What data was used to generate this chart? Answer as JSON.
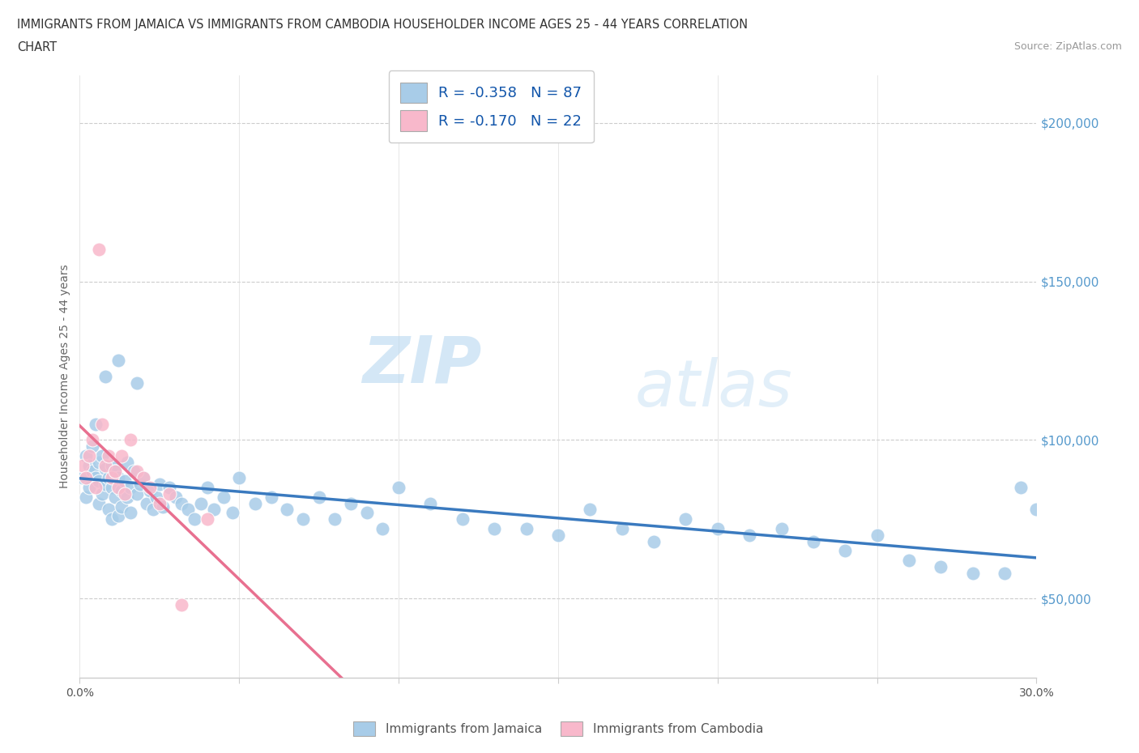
{
  "title_line1": "IMMIGRANTS FROM JAMAICA VS IMMIGRANTS FROM CAMBODIA HOUSEHOLDER INCOME AGES 25 - 44 YEARS CORRELATION",
  "title_line2": "CHART",
  "source_text": "Source: ZipAtlas.com",
  "ylabel": "Householder Income Ages 25 - 44 years",
  "xlim": [
    0.0,
    0.3
  ],
  "ylim": [
    25000,
    215000
  ],
  "x_ticks": [
    0.0,
    0.05,
    0.1,
    0.15,
    0.2,
    0.25,
    0.3
  ],
  "x_tick_labels": [
    "0.0%",
    "",
    "",
    "",
    "",
    "",
    "30.0%"
  ],
  "y_ticks": [
    50000,
    100000,
    150000,
    200000
  ],
  "y_tick_labels": [
    "$50,000",
    "$100,000",
    "$150,000",
    "$200,000"
  ],
  "jamaica_color": "#a8cce8",
  "cambodia_color": "#f8b8cb",
  "jamaica_line_color": "#3a7abf",
  "cambodia_line_color": "#e87090",
  "legend_jamaica_label": "R = -0.358   N = 87",
  "legend_cambodia_label": "R = -0.170   N = 22",
  "watermark_part1": "ZIP",
  "watermark_part2": "atlas",
  "jamaica_x": [
    0.001,
    0.002,
    0.002,
    0.003,
    0.003,
    0.004,
    0.004,
    0.005,
    0.005,
    0.006,
    0.006,
    0.006,
    0.007,
    0.007,
    0.008,
    0.008,
    0.009,
    0.009,
    0.01,
    0.01,
    0.01,
    0.011,
    0.011,
    0.012,
    0.012,
    0.013,
    0.013,
    0.014,
    0.015,
    0.015,
    0.016,
    0.016,
    0.017,
    0.018,
    0.019,
    0.02,
    0.021,
    0.022,
    0.023,
    0.024,
    0.025,
    0.026,
    0.028,
    0.03,
    0.032,
    0.034,
    0.036,
    0.038,
    0.04,
    0.042,
    0.045,
    0.048,
    0.05,
    0.055,
    0.06,
    0.065,
    0.07,
    0.075,
    0.08,
    0.085,
    0.09,
    0.095,
    0.1,
    0.11,
    0.12,
    0.13,
    0.14,
    0.15,
    0.16,
    0.17,
    0.18,
    0.19,
    0.2,
    0.21,
    0.22,
    0.23,
    0.24,
    0.25,
    0.26,
    0.27,
    0.28,
    0.29,
    0.295,
    0.3,
    0.008,
    0.012,
    0.018
  ],
  "jamaica_y": [
    88000,
    95000,
    82000,
    92000,
    85000,
    98000,
    90000,
    88000,
    105000,
    93000,
    87000,
    80000,
    95000,
    83000,
    91000,
    86000,
    88000,
    78000,
    92000,
    85000,
    75000,
    90000,
    82000,
    88000,
    76000,
    84000,
    79000,
    87000,
    93000,
    82000,
    85000,
    77000,
    90000,
    83000,
    86000,
    88000,
    80000,
    84000,
    78000,
    82000,
    86000,
    79000,
    85000,
    82000,
    80000,
    78000,
    75000,
    80000,
    85000,
    78000,
    82000,
    77000,
    88000,
    80000,
    82000,
    78000,
    75000,
    82000,
    75000,
    80000,
    77000,
    72000,
    85000,
    80000,
    75000,
    72000,
    72000,
    70000,
    78000,
    72000,
    68000,
    75000,
    72000,
    70000,
    72000,
    68000,
    65000,
    70000,
    62000,
    60000,
    58000,
    58000,
    85000,
    78000,
    120000,
    125000,
    118000
  ],
  "cambodia_x": [
    0.001,
    0.002,
    0.003,
    0.004,
    0.005,
    0.006,
    0.007,
    0.008,
    0.009,
    0.01,
    0.011,
    0.012,
    0.013,
    0.014,
    0.016,
    0.018,
    0.02,
    0.022,
    0.025,
    0.028,
    0.032,
    0.04
  ],
  "cambodia_y": [
    92000,
    88000,
    95000,
    100000,
    85000,
    160000,
    105000,
    92000,
    95000,
    88000,
    90000,
    85000,
    95000,
    83000,
    100000,
    90000,
    88000,
    85000,
    80000,
    83000,
    48000,
    75000
  ]
}
